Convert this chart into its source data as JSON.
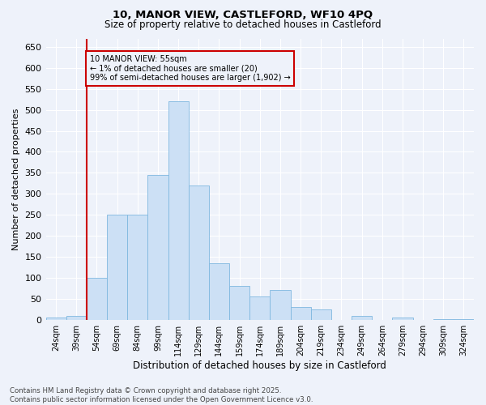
{
  "title_line1": "10, MANOR VIEW, CASTLEFORD, WF10 4PQ",
  "title_line2": "Size of property relative to detached houses in Castleford",
  "xlabel": "Distribution of detached houses by size in Castleford",
  "ylabel": "Number of detached properties",
  "footer_line1": "Contains HM Land Registry data © Crown copyright and database right 2025.",
  "footer_line2": "Contains public sector information licensed under the Open Government Licence v3.0.",
  "annotation_title": "10 MANOR VIEW: 55sqm",
  "annotation_line2": "← 1% of detached houses are smaller (20)",
  "annotation_line3": "99% of semi-detached houses are larger (1,902) →",
  "bar_color": "#cce0f5",
  "bar_edge_color": "#7fb8e0",
  "vline_color": "#cc0000",
  "annotation_box_color": "#cc0000",
  "background_color": "#eef2fa",
  "grid_color": "#ffffff",
  "categories": [
    "24sqm",
    "39sqm",
    "54sqm",
    "69sqm",
    "84sqm",
    "99sqm",
    "114sqm",
    "129sqm",
    "144sqm",
    "159sqm",
    "174sqm",
    "189sqm",
    "204sqm",
    "219sqm",
    "234sqm",
    "249sqm",
    "264sqm",
    "279sqm",
    "294sqm",
    "309sqm",
    "324sqm"
  ],
  "values": [
    5,
    10,
    100,
    250,
    250,
    345,
    520,
    320,
    135,
    80,
    55,
    70,
    30,
    25,
    0,
    10,
    0,
    5,
    0,
    2,
    2
  ],
  "ylim": [
    0,
    670
  ],
  "yticks": [
    0,
    50,
    100,
    150,
    200,
    250,
    300,
    350,
    400,
    450,
    500,
    550,
    600,
    650
  ],
  "vline_x_index": 2,
  "figsize": [
    6.0,
    5.0
  ],
  "dpi": 100
}
